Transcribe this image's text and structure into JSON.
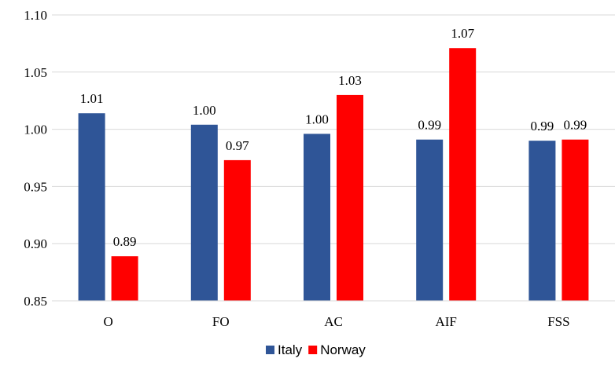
{
  "chart_data": {
    "type": "bar",
    "title": "",
    "xlabel": "",
    "ylabel": "",
    "categories": [
      "O",
      "FO",
      "AC",
      "AIF",
      "FSS"
    ],
    "series": [
      {
        "name": "Italy",
        "color": "#2F5597",
        "values": [
          1.014,
          1.004,
          0.996,
          0.991,
          0.99
        ],
        "labels": [
          "1.01",
          "1.00",
          "1.00",
          "0.99",
          "0.99"
        ]
      },
      {
        "name": "Norway",
        "color": "#FF0000",
        "values": [
          0.889,
          0.973,
          1.03,
          1.071,
          0.991
        ],
        "labels": [
          "0.89",
          "0.97",
          "1.03",
          "1.07",
          "0.99"
        ]
      }
    ],
    "ylim": [
      0.85,
      1.1
    ],
    "yticks": [
      "0.85",
      "0.90",
      "0.95",
      "1.00",
      "1.05",
      "1.10"
    ],
    "grid": true,
    "legend_position": "bottom"
  }
}
